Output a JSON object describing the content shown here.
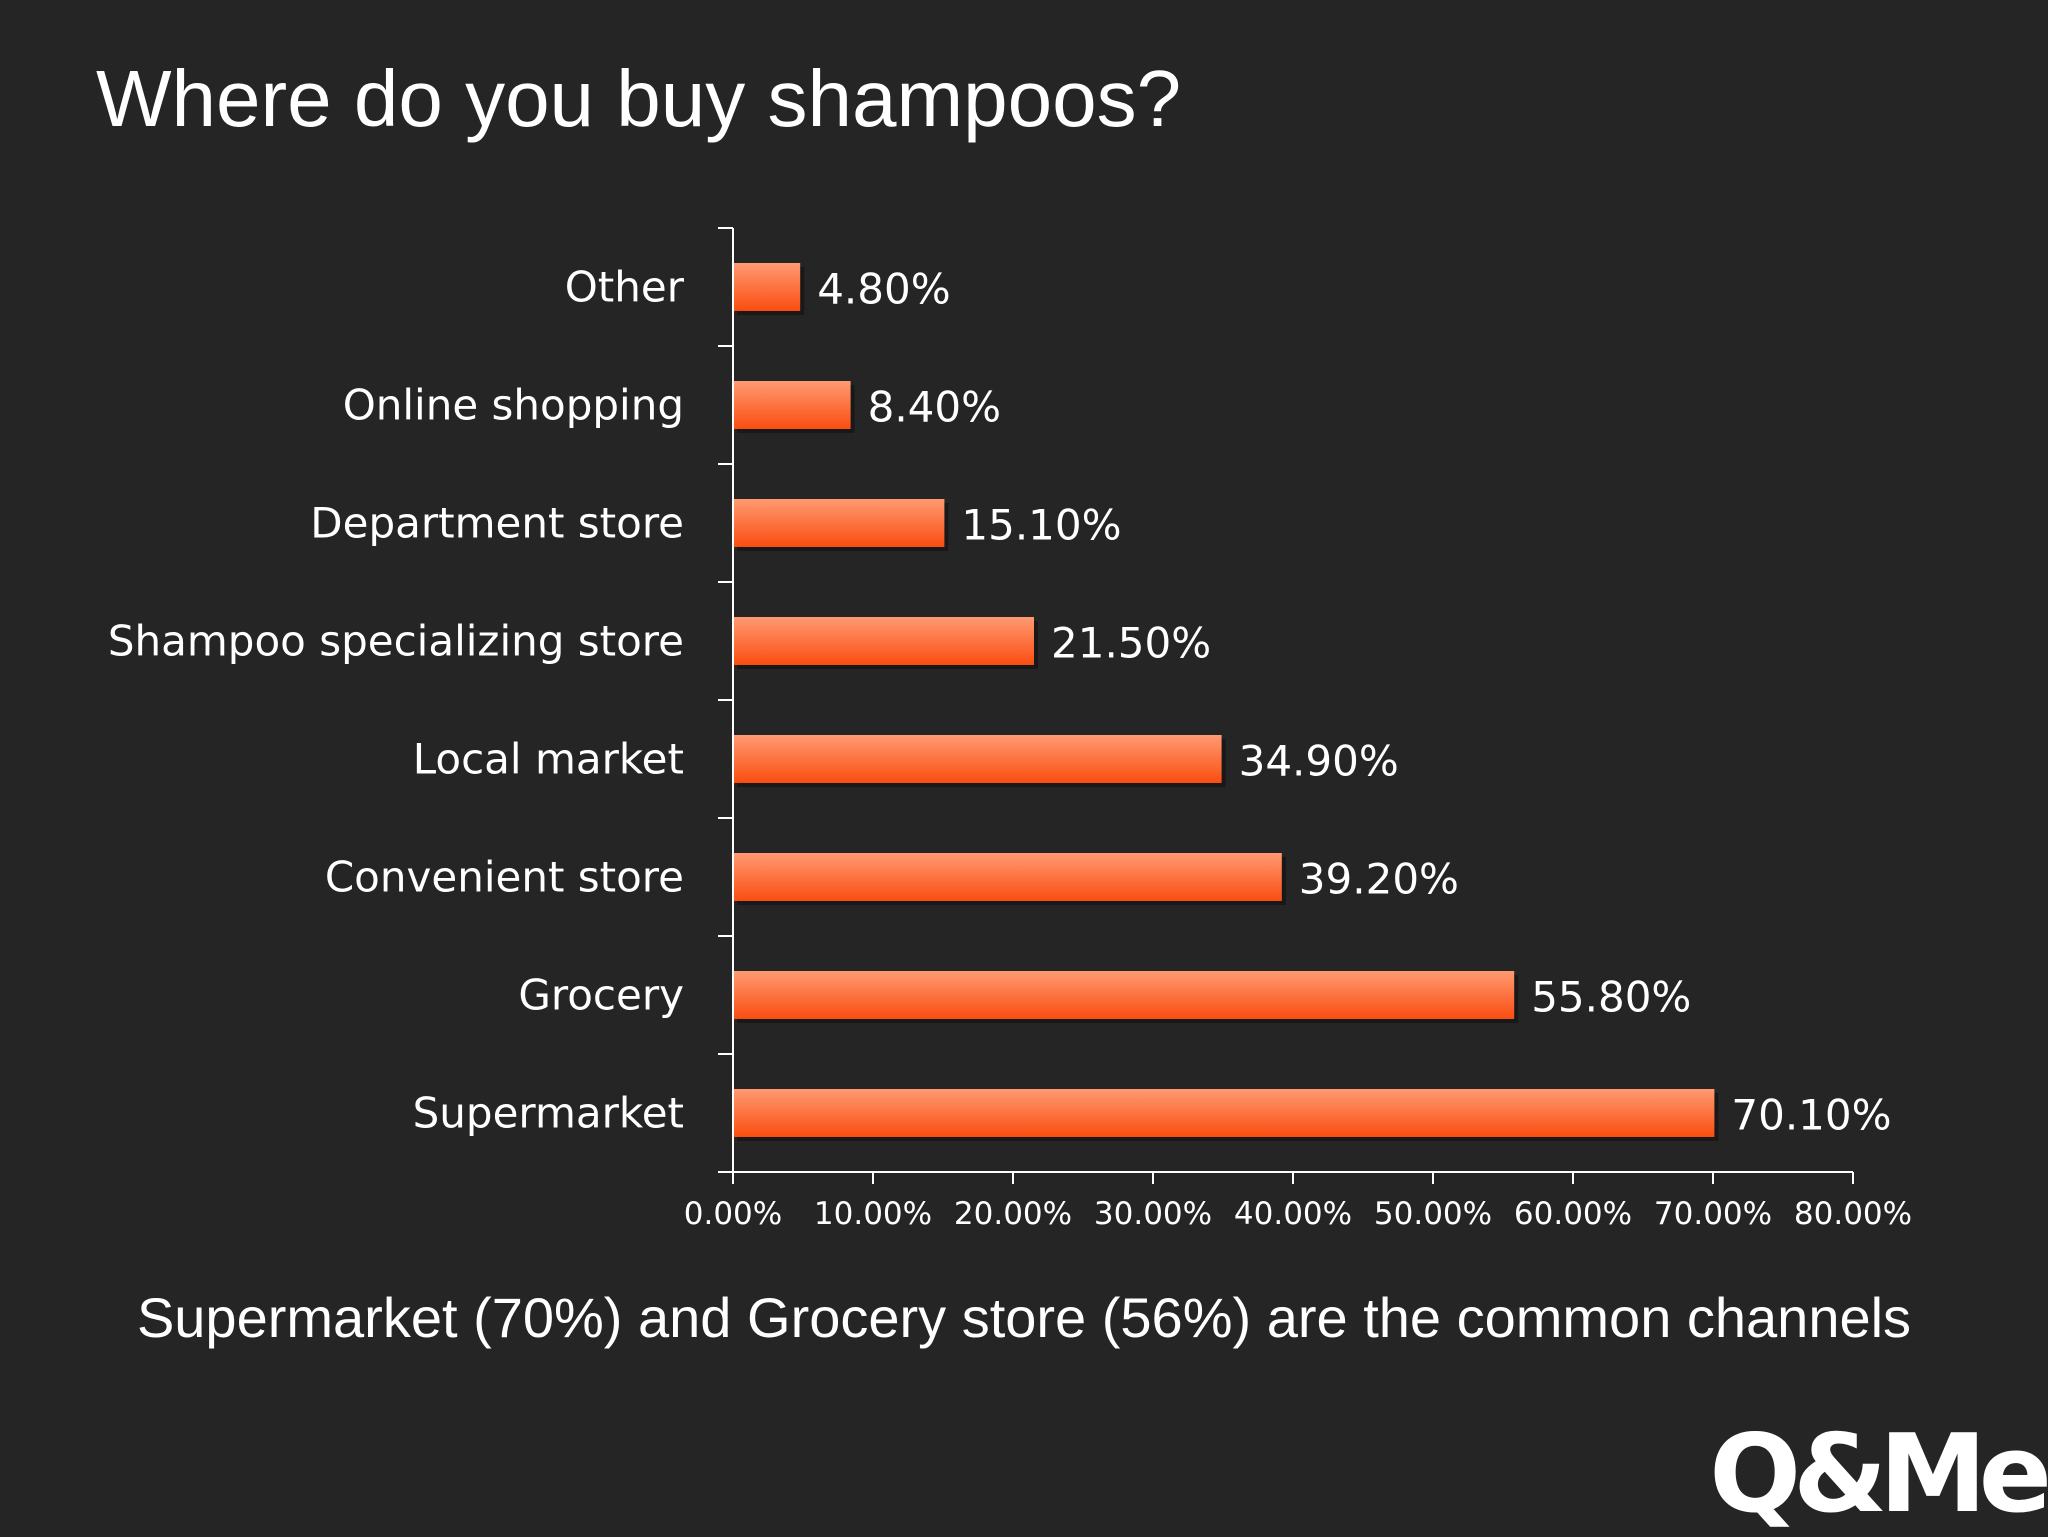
{
  "title": "Where do you buy shampoos?",
  "caption": "Supermarket (70%) and Grocery store (56%) are the common channels",
  "logo_text": "Q&Me",
  "colors": {
    "background": "#262526",
    "bar_top": "#ff9a72",
    "bar_bottom": "#fa4d10",
    "axis": "#ffffff",
    "text": "#ffffff"
  },
  "chart_data": {
    "type": "bar",
    "orientation": "horizontal",
    "title": "Where do you buy shampoos?",
    "categories": [
      "Other",
      "Online shopping",
      "Department store",
      "Shampoo specializing store",
      "Local market",
      "Convenient store",
      "Grocery",
      "Supermarket"
    ],
    "values": [
      4.8,
      8.4,
      15.1,
      21.5,
      34.9,
      39.2,
      55.8,
      70.1
    ],
    "value_labels": [
      "4.80%",
      "8.40%",
      "15.10%",
      "21.50%",
      "34.90%",
      "39.20%",
      "55.80%",
      "70.10%"
    ],
    "xlim": [
      0,
      80
    ],
    "x_ticks": [
      0,
      10,
      20,
      30,
      40,
      50,
      60,
      70,
      80
    ],
    "x_tick_labels": [
      "0.00%",
      "10.00%",
      "20.00%",
      "30.00%",
      "40.00%",
      "50.00%",
      "60.00%",
      "70.00%",
      "80.00%"
    ],
    "xlabel": "",
    "ylabel": "",
    "grid": false,
    "legend": false
  }
}
